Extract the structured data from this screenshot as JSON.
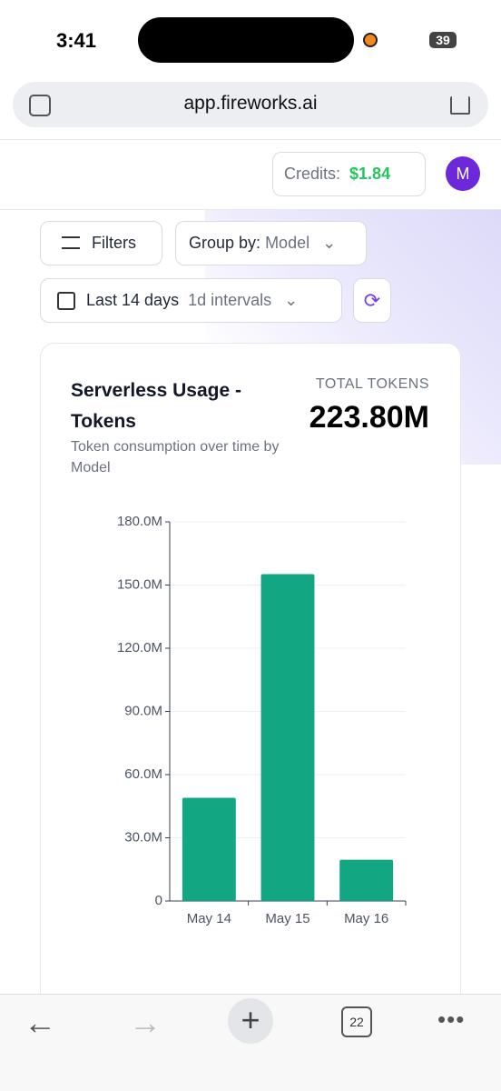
{
  "status_bar": {
    "time": "3:41",
    "battery": "39"
  },
  "browser": {
    "url": "app.fireworks.ai",
    "tab_count": "22"
  },
  "header": {
    "credits_label": "Credits:",
    "credits_amount": "$1.84",
    "avatar": "M"
  },
  "controls": {
    "filters": "Filters",
    "group_by_label": "Group by:",
    "group_by_value": "Model",
    "date_range": "Last 14 days",
    "interval": "1d intervals"
  },
  "card": {
    "title": "Serverless Usage - Tokens",
    "subtitle": "Token consumption over time by Model",
    "total_label": "TOTAL TOKENS",
    "total_value": "223.80M"
  },
  "chart_data": {
    "type": "bar",
    "categories": [
      "May 14",
      "May 15",
      "May 16"
    ],
    "values": [
      49,
      155.2,
      19.6
    ],
    "color": "#13a683",
    "ylim": [
      0,
      180
    ],
    "yticks": [
      0,
      {
        "value": 30,
        "label": "30.0M"
      },
      {
        "value": 60,
        "label": "60.0M"
      },
      {
        "value": 90,
        "label": "90.0M"
      },
      {
        "value": 120,
        "label": "120.0M"
      },
      {
        "value": 150,
        "label": "150.0M"
      },
      {
        "value": 180,
        "label": "180.0M"
      }
    ],
    "grid": true
  }
}
